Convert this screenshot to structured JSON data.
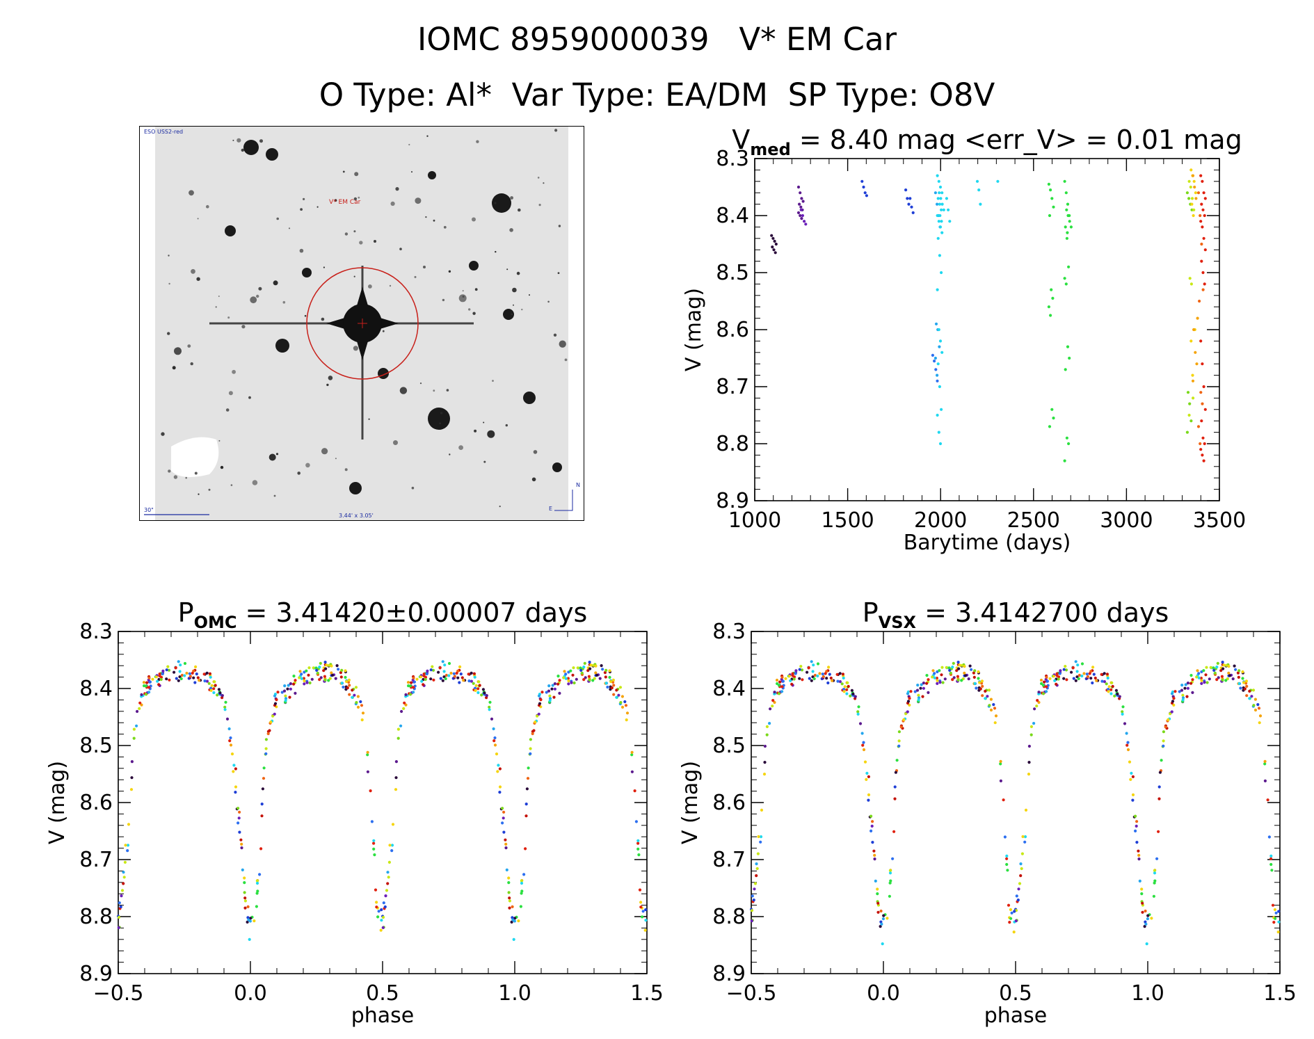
{
  "header": {
    "line1": "IOMC 8959000039   V* EM Car",
    "line2": "O Type: Al*  Var Type: EA/DM  SP Type: O8V"
  },
  "finder": {
    "survey_label": "ESO USS2-red",
    "target_label": "V* EM Car",
    "scale_label": "30\"",
    "fov_label": "3.44' x 3.05'",
    "compass_e": "E",
    "compass_n": "N"
  },
  "colors": {
    "palette": [
      "#2a0a3a",
      "#5c1a8e",
      "#6a1fb8",
      "#1f3fd6",
      "#2c6ff0",
      "#24a6ee",
      "#1fd8f0",
      "#2be040",
      "#7ad91a",
      "#c8e816",
      "#f5d510",
      "#f5a40c",
      "#f06514",
      "#e0200e",
      "#c41208"
    ]
  },
  "chart_data": [
    {
      "id": "lightcurve",
      "type": "scatter",
      "title_main": "V",
      "title_sub": "med",
      "title_rest": " = 8.40 mag <err_V> = 0.01 mag",
      "xlabel": "Barytime (days)",
      "ylabel": "V (mag)",
      "xlim": [
        1000,
        3500
      ],
      "ylim": [
        8.9,
        8.3
      ],
      "xticks": [
        1000,
        1500,
        2000,
        2500,
        3000,
        3500
      ],
      "xtick_labels": [
        "1000",
        "1500",
        "2000",
        "2500",
        "3000",
        "3500"
      ],
      "yticks": [
        8.3,
        8.4,
        8.5,
        8.6,
        8.7,
        8.8,
        8.9
      ],
      "ytick_labels": [
        "8.3",
        "8.4",
        "8.5",
        "8.6",
        "8.7",
        "8.8",
        "8.9"
      ],
      "epochs": [
        {
          "t": 1103,
          "color": 0,
          "mags": [
            8.435,
            8.44,
            8.445,
            8.45,
            8.455,
            8.46,
            8.465
          ]
        },
        {
          "t": 1248,
          "color": 1,
          "mags": [
            8.35,
            8.36,
            8.37,
            8.375,
            8.38,
            8.385,
            8.39,
            8.395,
            8.4,
            8.405
          ]
        },
        {
          "t": 1262,
          "color": 2,
          "mags": [
            8.39,
            8.4,
            8.41,
            8.415
          ]
        },
        {
          "t": 1590,
          "color": 3,
          "mags": [
            8.34,
            8.35,
            8.36,
            8.365
          ]
        },
        {
          "t": 1825,
          "color": 3,
          "mags": [
            8.355,
            8.37,
            8.38
          ]
        },
        {
          "t": 1848,
          "color": 3,
          "mags": [
            8.37,
            8.385,
            8.395
          ]
        },
        {
          "t": 1970,
          "color": 4,
          "mags": [
            8.645,
            8.655,
            8.67,
            8.69
          ]
        },
        {
          "t": 1985,
          "color": 5,
          "mags": [
            8.36,
            8.38,
            8.4,
            8.42,
            8.59,
            8.6,
            8.63,
            8.65,
            8.68
          ]
        },
        {
          "t": 1995,
          "color": 6,
          "mags": [
            8.33,
            8.34,
            8.35,
            8.36,
            8.37,
            8.38,
            8.39,
            8.4,
            8.41,
            8.42,
            8.43,
            8.44,
            8.47,
            8.5,
            8.53,
            8.6,
            8.62,
            8.64,
            8.66,
            8.7,
            8.74,
            8.75,
            8.78,
            8.8
          ]
        },
        {
          "t": 2005,
          "color": 6,
          "mags": [
            8.36,
            8.37,
            8.38,
            8.39,
            8.4,
            8.41
          ]
        },
        {
          "t": 2045,
          "color": 6,
          "mags": [
            8.37,
            8.39,
            8.41
          ]
        },
        {
          "t": 2210,
          "color": 6,
          "mags": [
            8.34,
            8.355,
            8.38
          ]
        },
        {
          "t": 2320,
          "color": 6,
          "mags": [
            8.34
          ]
        },
        {
          "t": 2595,
          "color": 7,
          "mags": [
            8.345,
            8.355,
            8.37,
            8.385,
            8.4,
            8.53,
            8.545,
            8.56,
            8.575,
            8.74,
            8.755,
            8.77
          ]
        },
        {
          "t": 2680,
          "color": 7,
          "mags": [
            8.34,
            8.36,
            8.38,
            8.4,
            8.42,
            8.44,
            8.49,
            8.51,
            8.52,
            8.63,
            8.65,
            8.67,
            8.79,
            8.8,
            8.83
          ]
        },
        {
          "t": 2690,
          "color": 7,
          "mags": [
            8.39,
            8.4,
            8.41,
            8.42,
            8.43
          ]
        },
        {
          "t": 3340,
          "color": 8,
          "mags": [
            8.36,
            8.37,
            8.38,
            8.39,
            8.71,
            8.73,
            8.76,
            8.78
          ]
        },
        {
          "t": 3350,
          "color": 9,
          "mags": [
            8.34,
            8.35,
            8.37,
            8.39,
            8.51,
            8.52,
            8.72,
            8.75
          ]
        },
        {
          "t": 3360,
          "color": 10,
          "mags": [
            8.32,
            8.33,
            8.34,
            8.36,
            8.38,
            8.4,
            8.6,
            8.62,
            8.68
          ]
        },
        {
          "t": 3370,
          "color": 11,
          "mags": [
            8.33,
            8.35,
            8.37,
            8.58,
            8.6,
            8.64,
            8.66,
            8.69
          ]
        },
        {
          "t": 3400,
          "color": 12,
          "mags": [
            8.36,
            8.4,
            8.45,
            8.53,
            8.55,
            8.71,
            8.73,
            8.77,
            8.8
          ]
        },
        {
          "t": 3412,
          "color": 13,
          "mags": [
            8.33,
            8.34,
            8.36,
            8.37,
            8.38,
            8.39,
            8.4,
            8.41,
            8.42,
            8.44,
            8.46,
            8.48,
            8.5,
            8.52,
            8.62,
            8.66,
            8.7,
            8.74,
            8.76,
            8.79,
            8.8,
            8.81,
            8.82,
            8.83
          ]
        }
      ]
    },
    {
      "id": "phase_omc",
      "type": "scatter",
      "title_main": "P",
      "title_sub": "OMC",
      "title_rest": " = 3.41420±0.00007 days",
      "xlabel": "phase",
      "ylabel": "V (mag)",
      "xlim": [
        -0.5,
        1.5
      ],
      "ylim": [
        8.9,
        8.3
      ],
      "xticks": [
        -0.5,
        0.0,
        0.5,
        1.0,
        1.5
      ],
      "xtick_labels": [
        "−0.5",
        "0.0",
        "0.5",
        "1.0",
        "1.5"
      ],
      "yticks": [
        8.3,
        8.4,
        8.5,
        8.6,
        8.7,
        8.8,
        8.9
      ],
      "ytick_labels": [
        "8.3",
        "8.4",
        "8.5",
        "8.6",
        "8.7",
        "8.8",
        "8.9"
      ],
      "phase_shift": 0.0
    },
    {
      "id": "phase_vsx",
      "type": "scatter",
      "title_main": "P",
      "title_sub": "VSX",
      "title_rest": " = 3.4142700 days",
      "xlabel": "phase",
      "ylabel": "V (mag)",
      "xlim": [
        -0.5,
        1.5
      ],
      "ylim": [
        8.9,
        8.3
      ],
      "xticks": [
        -0.5,
        0.0,
        0.5,
        1.0,
        1.5
      ],
      "xtick_labels": [
        "−0.5",
        "0.0",
        "0.5",
        "1.0",
        "1.5"
      ],
      "yticks": [
        8.3,
        8.4,
        8.5,
        8.6,
        8.7,
        8.8,
        8.9
      ],
      "ytick_labels": [
        "8.3",
        "8.4",
        "8.5",
        "8.6",
        "8.7",
        "8.8",
        "8.9"
      ],
      "phase_shift": 0.003
    }
  ],
  "phase_curve": {
    "note_values": "phase -> mag control points for one cycle (phase 0..1)",
    "points": [
      [
        0.0,
        8.82
      ],
      [
        0.02,
        8.79
      ],
      [
        0.035,
        8.7
      ],
      [
        0.05,
        8.55
      ],
      [
        0.07,
        8.46
      ],
      [
        0.1,
        8.42
      ],
      [
        0.15,
        8.4
      ],
      [
        0.2,
        8.38
      ],
      [
        0.25,
        8.37
      ],
      [
        0.3,
        8.37
      ],
      [
        0.35,
        8.38
      ],
      [
        0.4,
        8.41
      ],
      [
        0.43,
        8.46
      ],
      [
        0.46,
        8.62
      ],
      [
        0.48,
        8.8
      ],
      [
        0.5,
        8.82
      ],
      [
        0.52,
        8.74
      ],
      [
        0.54,
        8.64
      ],
      [
        0.56,
        8.46
      ],
      [
        0.6,
        8.4
      ],
      [
        0.65,
        8.38
      ],
      [
        0.7,
        8.37
      ],
      [
        0.75,
        8.37
      ],
      [
        0.8,
        8.38
      ],
      [
        0.85,
        8.39
      ],
      [
        0.9,
        8.42
      ],
      [
        0.93,
        8.5
      ],
      [
        0.96,
        8.64
      ],
      [
        0.98,
        8.77
      ],
      [
        1.0,
        8.82
      ]
    ]
  }
}
